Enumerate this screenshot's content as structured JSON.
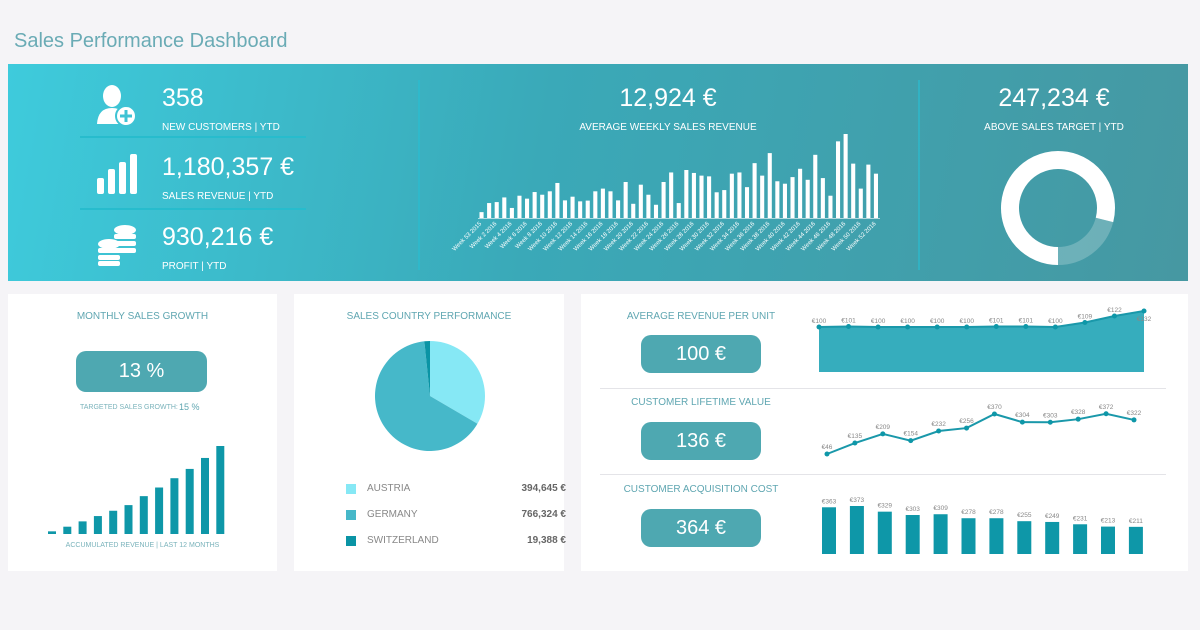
{
  "title": "Sales Performance Dashboard",
  "colors": {
    "accent": "#4ea8b1",
    "bar": "#0e97a8",
    "austria": "#86e8f5",
    "germany": "#46b8c9",
    "switzerland": "#0a94a5"
  },
  "kpis": {
    "new_customers": {
      "value": "358",
      "label": "NEW CUSTOMERS | YTD",
      "icon": "user-add-icon"
    },
    "sales_revenue": {
      "value": "1,180,357 €",
      "label": "SALES REVENUE | YTD",
      "icon": "bar-chart-icon"
    },
    "profit": {
      "value": "930,216 €",
      "label": "PROFIT | YTD",
      "icon": "coins-icon"
    },
    "avg_weekly": {
      "value": "12,924 €",
      "label": "AVERAGE WEEKLY SALES REVENUE"
    },
    "above_target": {
      "value": "247,234 €",
      "label": "ABOVE SALES TARGET | YTD",
      "donut_fraction": 0.79
    }
  },
  "monthly": {
    "title": "MONTHLY SALES GROWTH",
    "value": "13 %",
    "target_label": "TARGETED SALES GROWTH:",
    "target_value": "15 %",
    "chart_label": "ACCUMULATED REVENUE | LAST 12 MONTHS"
  },
  "country": {
    "title": "SALES COUNTRY PERFORMANCE",
    "items": [
      {
        "name": "AUSTRIA",
        "value": "394,645 €"
      },
      {
        "name": "GERMANY",
        "value": "766,324 €"
      },
      {
        "name": "SWITZERLAND",
        "value": "19,388 €"
      }
    ]
  },
  "unit_metrics": [
    {
      "title": "AVERAGE REVENUE PER UNIT",
      "value": "100 €"
    },
    {
      "title": "CUSTOMER LIFETIME VALUE",
      "value": "136 €"
    },
    {
      "title": "CUSTOMER ACQUISITION COST",
      "value": "364 €"
    }
  ],
  "chart_data": [
    {
      "type": "bar",
      "title": "AVERAGE WEEKLY SALES REVENUE",
      "categories": [
        "Week 53 2015",
        "Week 1 2016",
        "Week 2 2016",
        "Week 3 2016",
        "Week 4 2016",
        "Week 5 2016",
        "Week 6 2016",
        "Week 7 2016",
        "Week 8 2016",
        "Week 9 2016",
        "Week 10 2016",
        "Week 11 2016",
        "Week 12 2016",
        "Week 13 2016",
        "Week 14 2016",
        "Week 15 2016",
        "Week 16 2016",
        "Week 17 2016",
        "Week 18 2016",
        "Week 19 2016",
        "Week 20 2016",
        "Week 21 2016",
        "Week 22 2016",
        "Week 23 2016",
        "Week 24 2016",
        "Week 25 2016",
        "Week 26 2016",
        "Week 27 2016",
        "Week 28 2016",
        "Week 29 2016",
        "Week 30 2016",
        "Week 31 2016",
        "Week 32 2016",
        "Week 33 2016",
        "Week 34 2016",
        "Week 35 2016",
        "Week 36 2016",
        "Week 37 2016",
        "Week 38 2016",
        "Week 39 2016",
        "Week 40 2016",
        "Week 41 2016",
        "Week 42 2016",
        "Week 43 2016",
        "Week 44 2016",
        "Week 45 2016",
        "Week 46 2016",
        "Week 47 2016",
        "Week 48 2016",
        "Week 49 2016",
        "Week 50 2016",
        "Week 51 2016",
        "Week 52 2016"
      ],
      "tick_labels": [
        "Week 53 2015",
        "Week 2 2016",
        "Week 4 2016",
        "Week 6 2016",
        "Week 8 2016",
        "Week 10 2016",
        "Week 12 2016",
        "Week 14 2016",
        "Week 16 2016",
        "Week 18 2016",
        "Week 20 2016",
        "Week 22 2016",
        "Week 24 2016",
        "Week 26 2016",
        "Week 28 2016",
        "Week 30 2016",
        "Week 32 2016",
        "Week 34 2016",
        "Week 36 2016",
        "Week 38 2016",
        "Week 40 2016",
        "Week 42 2016",
        "Week 44 2016",
        "Week 46 2016",
        "Week 48 2016",
        "Week 50 2016",
        "Week 52 2016"
      ],
      "values": [
        2400,
        6100,
        6500,
        8400,
        4100,
        9100,
        7900,
        10600,
        9500,
        10900,
        14300,
        7200,
        8700,
        6800,
        7100,
        10900,
        12000,
        10900,
        7200,
        14700,
        5800,
        13600,
        9500,
        5400,
        14700,
        18600,
        6100,
        19600,
        18400,
        17300,
        17000,
        10500,
        11400,
        18100,
        18600,
        12600,
        22400,
        17300,
        26500,
        15000,
        14000,
        16700,
        20100,
        15600,
        25800,
        16300,
        9100,
        31300,
        34300,
        22200,
        12000,
        21800,
        18100
      ]
    },
    {
      "type": "bar",
      "title": "ACCUMULATED REVENUE | LAST 12 MONTHS",
      "values": [
        8,
        22,
        38,
        54,
        70,
        87,
        114,
        140,
        168,
        196,
        229,
        265
      ]
    },
    {
      "type": "pie",
      "title": "SALES COUNTRY PERFORMANCE",
      "categories": [
        "AUSTRIA",
        "GERMANY",
        "SWITZERLAND"
      ],
      "values": [
        394645,
        766324,
        19388
      ]
    },
    {
      "type": "area",
      "title": "AVERAGE REVENUE PER UNIT",
      "labels": [
        "€100",
        "€101",
        "€100",
        "€100",
        "€100",
        "€100",
        "€101",
        "€101",
        "€100",
        "€109",
        "€122",
        "€132"
      ],
      "values": [
        100,
        101,
        100,
        100,
        100,
        100,
        101,
        101,
        100,
        109,
        122,
        132
      ]
    },
    {
      "type": "line",
      "title": "CUSTOMER LIFETIME VALUE",
      "labels": [
        "€46",
        "€135",
        "€209",
        "€154",
        "€232",
        "€256",
        "€370",
        "€304",
        "€303",
        "€328",
        "€372",
        "€322"
      ],
      "values": [
        46,
        135,
        209,
        154,
        232,
        256,
        370,
        304,
        303,
        328,
        372,
        322
      ]
    },
    {
      "type": "bar",
      "title": "CUSTOMER ACQUISITION COST",
      "labels": [
        "€363",
        "€373",
        "€329",
        "€303",
        "€309",
        "€278",
        "€278",
        "€255",
        "€249",
        "€231",
        "€213",
        "€211"
      ],
      "values": [
        363,
        373,
        329,
        303,
        309,
        278,
        278,
        255,
        249,
        231,
        213,
        211
      ]
    }
  ]
}
